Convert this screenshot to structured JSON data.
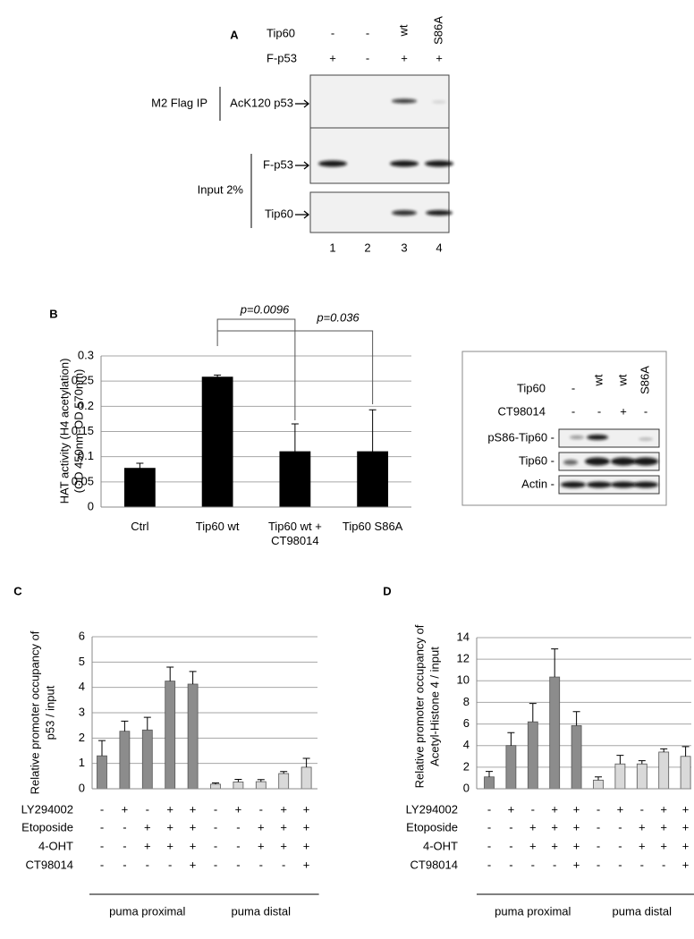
{
  "panel_a": {
    "label": "A",
    "conditions": [
      {
        "label": "Tip60",
        "marks": [
          "-",
          "-",
          "wt",
          "S86A"
        ]
      },
      {
        "label": "F-p53",
        "marks": [
          "+",
          "-",
          "+",
          "+"
        ]
      }
    ],
    "ip_label": "M2 Flag IP",
    "input_label": "Input 2%",
    "blots": [
      "AcK120 p53",
      "F-p53",
      "Tip60"
    ],
    "lanes": [
      "1",
      "2",
      "3",
      "4"
    ]
  },
  "chart_data": [
    {
      "type": "bar",
      "label": "B",
      "ylabel": [
        "HAT activity (H4 acetylation)",
        "(OD 450nm-OD 570nm)"
      ],
      "categories": [
        "Ctrl",
        "Tip60 wt",
        "Tip60 wt + CT98014",
        "Tip60 S86A"
      ],
      "values": [
        0.077,
        0.258,
        0.11,
        0.11
      ],
      "errors": [
        0.01,
        0.004,
        0.055,
        0.083
      ],
      "color": "#000000",
      "ylim": [
        0,
        0.3
      ],
      "yticks": [
        0,
        0.05,
        0.1,
        0.15,
        0.2,
        0.25,
        0.3
      ],
      "grid": true,
      "annotations": [
        "p=0.0096",
        "p=0.036"
      ]
    },
    {
      "type": "grouped_bar",
      "label": "C",
      "ylabel": [
        "Relative promoter occupancy of",
        "p53 / input"
      ],
      "groups": [
        {
          "label": "puma proximal",
          "color": "#8c8c8c",
          "values": [
            1.3,
            2.27,
            2.32,
            4.25,
            4.13
          ],
          "errors": [
            0.6,
            0.4,
            0.5,
            0.55,
            0.5
          ]
        },
        {
          "label": "puma distal",
          "color": "#d9d9d9",
          "values": [
            0.18,
            0.27,
            0.28,
            0.6,
            0.85
          ],
          "errors": [
            0.05,
            0.1,
            0.08,
            0.08,
            0.35
          ]
        }
      ],
      "conditions": [
        {
          "label": "LY294002",
          "marks": [
            "-",
            "+",
            "-",
            "+",
            "+",
            "-",
            "+",
            "-",
            "+",
            "+"
          ]
        },
        {
          "label": "Etoposide",
          "marks": [
            "-",
            "-",
            "+",
            "+",
            "+",
            "-",
            "-",
            "+",
            "+",
            "+"
          ]
        },
        {
          "label": "4-OHT",
          "marks": [
            "-",
            "-",
            "+",
            "+",
            "+",
            "-",
            "-",
            "+",
            "+",
            "+"
          ]
        },
        {
          "label": "CT98014",
          "marks": [
            "-",
            "-",
            "-",
            "-",
            "+",
            "-",
            "-",
            "-",
            "-",
            "+"
          ]
        }
      ],
      "ylim": [
        0,
        6
      ],
      "yticks": [
        0,
        1,
        2,
        3,
        4,
        5,
        6
      ],
      "grid": true
    },
    {
      "type": "grouped_bar",
      "label": "D",
      "ylabel": [
        "Relative promoter occupancy of",
        "Acetyl-Histone 4 / input"
      ],
      "groups": [
        {
          "label": "puma proximal",
          "color": "#8c8c8c",
          "values": [
            1.1,
            4.0,
            6.2,
            10.35,
            5.85
          ],
          "errors": [
            0.5,
            1.2,
            1.7,
            2.6,
            1.3
          ]
        },
        {
          "label": "puma distal",
          "color": "#d9d9d9",
          "values": [
            0.8,
            2.3,
            2.3,
            3.4,
            3.0
          ],
          "errors": [
            0.3,
            0.8,
            0.3,
            0.3,
            0.9
          ]
        }
      ],
      "conditions": [
        {
          "label": "LY294002",
          "marks": [
            "-",
            "+",
            "-",
            "+",
            "+",
            "-",
            "+",
            "-",
            "+",
            "+"
          ]
        },
        {
          "label": "Etoposide",
          "marks": [
            "-",
            "-",
            "+",
            "+",
            "+",
            "-",
            "-",
            "+",
            "+",
            "+"
          ]
        },
        {
          "label": "4-OHT",
          "marks": [
            "-",
            "-",
            "+",
            "+",
            "+",
            "-",
            "-",
            "+",
            "+",
            "+"
          ]
        },
        {
          "label": "CT98014",
          "marks": [
            "-",
            "-",
            "-",
            "-",
            "+",
            "-",
            "-",
            "-",
            "-",
            "+"
          ]
        }
      ],
      "ylim": [
        0,
        14
      ],
      "yticks": [
        0,
        2,
        4,
        6,
        8,
        10,
        12,
        14
      ],
      "grid": true
    }
  ],
  "panel_b_blot": {
    "conditions": [
      {
        "label": "Tip60",
        "marks": [
          "-",
          "wt",
          "wt",
          "S86A"
        ]
      },
      {
        "label": "CT98014",
        "marks": [
          "-",
          "-",
          "+",
          "-"
        ]
      }
    ],
    "rows": [
      "pS86-Tip60 -",
      "Tip60 -",
      "Actin -"
    ]
  }
}
